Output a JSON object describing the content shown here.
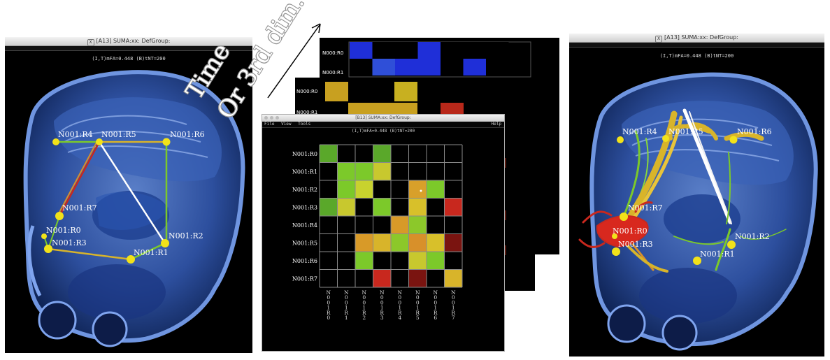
{
  "left_window": {
    "title": "[A13] SUMA:xx: DefGroup:",
    "status": "(I,T)mFA=0.448 (B)tNT=200",
    "nodes": [
      {
        "id": "r4",
        "label": "N001:R4"
      },
      {
        "id": "r5",
        "label": "N001:R5"
      },
      {
        "id": "r6",
        "label": "N001:R6"
      },
      {
        "id": "r7",
        "label": "N001:R7"
      },
      {
        "id": "r0",
        "label": "N001:R0"
      },
      {
        "id": "r3",
        "label": "N001:R3"
      },
      {
        "id": "r1",
        "label": "N001:R1"
      },
      {
        "id": "r2",
        "label": "N001:R2"
      }
    ]
  },
  "right_window": {
    "title": "[A13] SUMA:xx: DefGroup:",
    "status": "(I,T)mFA=0.448 (B)tNT=200",
    "nodes": [
      {
        "id": "r4",
        "label": "N001:R4"
      },
      {
        "id": "r5",
        "label": "N001:R5"
      },
      {
        "id": "r6",
        "label": "N001:R6"
      },
      {
        "id": "r7",
        "label": "N001:R7"
      },
      {
        "id": "r0",
        "label": "N001:R0"
      },
      {
        "id": "r3",
        "label": "N001:R3"
      },
      {
        "id": "r1",
        "label": "N001:R1"
      },
      {
        "id": "r2",
        "label": "N001:R2"
      }
    ]
  },
  "annotation": {
    "line1": "Time",
    "line2": "Or 3rd dim."
  },
  "matrix_window": {
    "title": "[B13] SUMA:xx: DefGroup:",
    "menu": {
      "file": "File",
      "view": "View",
      "tools": "Tools",
      "help": "Help"
    },
    "status": "(I,T)mFA=0.448 (B)tNT=200",
    "row_labels": [
      "N001:R0",
      "N001:R1",
      "N001:R2",
      "N001:R3",
      "N001:R4",
      "N001:R5",
      "N001:R6",
      "N001:R7"
    ],
    "col_labels": [
      "N001R0",
      "N001R1",
      "N001R2",
      "N001R3",
      "N001R4",
      "N001R5",
      "N001R6",
      "N001R7"
    ],
    "cells": [
      [
        "#5aa82a",
        "#000000",
        "#000000",
        "#5aa82a",
        "#000000",
        "#000000",
        "#000000",
        "#000000"
      ],
      [
        "#000000",
        "#7cc92a",
        "#7cc92a",
        "#c8c82e",
        "#000000",
        "#000000",
        "#000000",
        "#000000"
      ],
      [
        "#000000",
        "#7cc92a",
        "#c8d22e",
        "#000000",
        "#000000",
        "#d8a02a",
        "#7cc92a",
        "#000000"
      ],
      [
        "#5aa82a",
        "#c8c82e",
        "#000000",
        "#7cc92a",
        "#000000",
        "#d8c02a",
        "#000000",
        "#c8281e"
      ],
      [
        "#000000",
        "#000000",
        "#000000",
        "#000000",
        "#d89a28",
        "#8cc82a",
        "#000000",
        "#000000"
      ],
      [
        "#000000",
        "#000000",
        "#d89a28",
        "#d8b42a",
        "#8cc82a",
        "#d8902a",
        "#d8c02a",
        "#7a1410"
      ],
      [
        "#000000",
        "#000000",
        "#7cc92a",
        "#000000",
        "#000000",
        "#c8c82e",
        "#7cc92a",
        "#000000"
      ],
      [
        "#000000",
        "#000000",
        "#000000",
        "#c8281e",
        "#000000",
        "#7a1410",
        "#000000",
        "#d8b42a"
      ]
    ]
  },
  "stack_back": {
    "row_labels": [
      "N000:R0",
      "N000:R1"
    ],
    "cells_row0": [
      "#1f2fd8",
      "#000000",
      "#000000",
      "#1f2fd8",
      "#000000",
      "#000000",
      "#000000"
    ],
    "cells_row1": [
      "#000000",
      "#2f4fd8",
      "#1f2fd8",
      "#1f2fd8",
      "#000000",
      "#1f2fd8",
      "#000000"
    ]
  },
  "stack_mid": {
    "row_labels": [
      "N000:R0",
      "N000:R1"
    ],
    "cells_row0": [
      "#c8a020",
      "#000000",
      "#000000",
      "#c8b020",
      "#000000",
      "#000000",
      "#000000"
    ],
    "cells_row1": [
      "#000000",
      "#c8a020",
      "#c8a020",
      "#c8a020",
      "#000000",
      "#b8281a",
      "#000000"
    ]
  }
}
